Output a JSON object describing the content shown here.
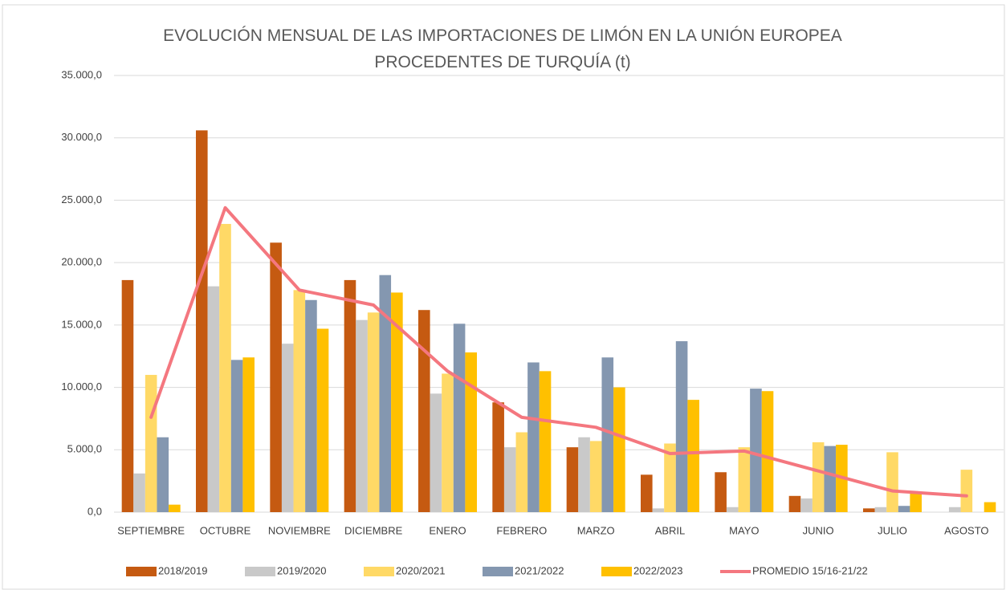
{
  "chart_data": {
    "type": "bar",
    "title": "EVOLUCIÓN MENSUAL DE LAS IMPORTACIONES DE LIMÓN EN LA UNIÓN EUROPEA PROCEDENTES DE TURQUÍA (t)",
    "categories": [
      "SEPTIEMBRE",
      "OCTUBRE",
      "NOVIEMBRE",
      "DICIEMBRE",
      "ENERO",
      "FEBRERO",
      "MARZO",
      "ABRIL",
      "MAYO",
      "JUNIO",
      "JULIO",
      "AGOSTO"
    ],
    "series": [
      {
        "name": "2018/2019",
        "color": "#c55a11",
        "values": [
          18600,
          30600,
          21600,
          18600,
          16200,
          8800,
          5200,
          3000,
          3200,
          1300,
          300,
          null
        ]
      },
      {
        "name": "2019/2020",
        "color": "#c9c9c9",
        "values": [
          3100,
          18100,
          13500,
          15400,
          9500,
          5200,
          6000,
          300,
          400,
          1100,
          400,
          400
        ]
      },
      {
        "name": "2020/2021",
        "color": "#ffd966",
        "values": [
          11000,
          23100,
          17800,
          16000,
          11100,
          6400,
          5700,
          5500,
          5200,
          5600,
          4800,
          3400
        ]
      },
      {
        "name": "2021/2022",
        "color": "#8497b0",
        "values": [
          6000,
          12200,
          17000,
          19000,
          15100,
          12000,
          12400,
          13700,
          9900,
          5300,
          500,
          null
        ]
      },
      {
        "name": "2022/2023",
        "color": "#ffc000",
        "values": [
          600,
          12400,
          14700,
          17600,
          12800,
          11300,
          10000,
          9000,
          9700,
          5400,
          1500,
          800
        ]
      },
      {
        "name": "PROMEDIO 15/16-21/22",
        "color": "#f4777f",
        "type": "line",
        "values": [
          7600,
          24400,
          17800,
          16600,
          11300,
          7600,
          6800,
          4700,
          4900,
          3300,
          1700,
          1300
        ]
      }
    ],
    "ylim": [
      0,
      35000
    ],
    "yticks": [
      {
        "value": 0,
        "label": "0,0"
      },
      {
        "value": 5000,
        "label": "5.000,0"
      },
      {
        "value": 10000,
        "label": "10.000,0"
      },
      {
        "value": 15000,
        "label": "15.000,0"
      },
      {
        "value": 20000,
        "label": "20.000,0"
      },
      {
        "value": 25000,
        "label": "25.000,0"
      },
      {
        "value": 30000,
        "label": "30.000,0"
      },
      {
        "value": 35000,
        "label": "35.000,0"
      }
    ],
    "grid": true,
    "legend": "bottom"
  }
}
